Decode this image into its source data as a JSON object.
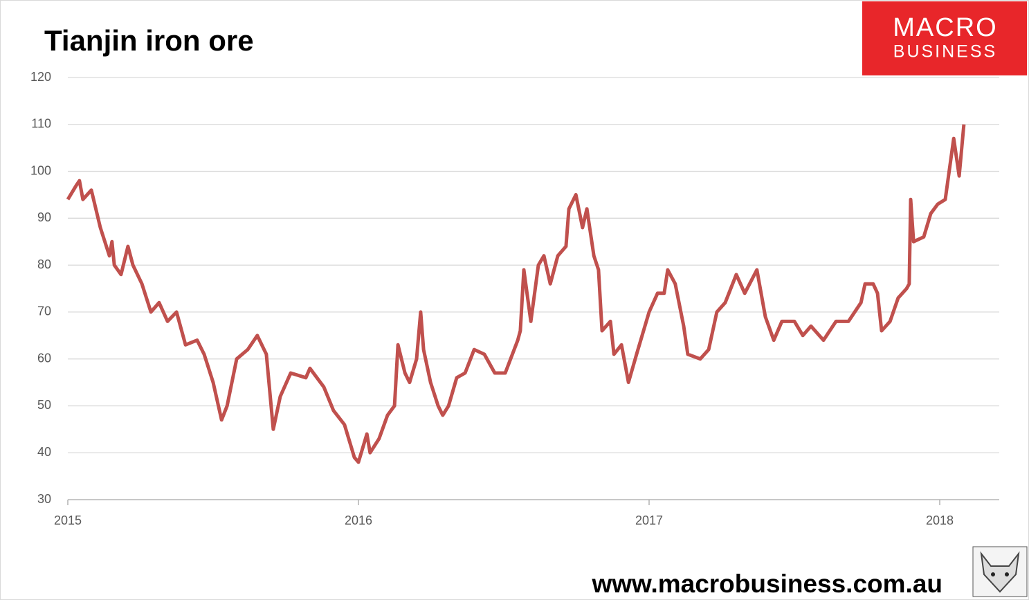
{
  "chart_data": {
    "type": "line",
    "title": "Tianjin iron ore",
    "x": [
      2015.0,
      2015.029,
      2015.04,
      2015.052,
      2015.081,
      2015.112,
      2015.143,
      2015.152,
      2015.16,
      2015.183,
      2015.207,
      2015.224,
      2015.255,
      2015.286,
      2015.314,
      2015.343,
      2015.374,
      2015.405,
      2015.445,
      2015.469,
      2015.5,
      2015.529,
      2015.548,
      2015.581,
      2015.619,
      2015.652,
      2015.683,
      2015.707,
      2015.731,
      2015.767,
      2015.819,
      2015.833,
      2015.881,
      2015.914,
      2015.952,
      2015.986,
      2016.0,
      2016.029,
      2016.04,
      2016.071,
      2016.1,
      2016.124,
      2016.136,
      2016.16,
      2016.176,
      2016.2,
      2016.214,
      2016.224,
      2016.248,
      2016.274,
      2016.29,
      2016.31,
      2016.338,
      2016.367,
      2016.398,
      2016.433,
      2016.469,
      2016.505,
      2016.548,
      2016.557,
      2016.569,
      2016.593,
      2016.619,
      2016.638,
      2016.66,
      2016.686,
      2016.714,
      2016.724,
      2016.748,
      2016.771,
      2016.786,
      2016.81,
      2016.826,
      2016.838,
      2016.867,
      2016.879,
      2016.905,
      2016.929,
      2016.957,
      2017.0,
      2017.029,
      2017.052,
      2017.064,
      2017.09,
      2017.119,
      2017.133,
      2017.176,
      2017.205,
      2017.233,
      2017.262,
      2017.3,
      2017.329,
      2017.371,
      2017.4,
      2017.429,
      2017.457,
      2017.5,
      2017.529,
      2017.557,
      2017.6,
      2017.643,
      2017.686,
      2017.729,
      2017.743,
      2017.771,
      2017.786,
      2017.8,
      2017.829,
      2017.857,
      2017.886,
      2017.895,
      2017.9,
      2017.91,
      2017.945,
      2017.969,
      2017.993,
      2018.019,
      2018.048,
      2018.067,
      2018.083
    ],
    "series": [
      {
        "name": "Tianjin iron ore",
        "color": "#c0504d",
        "values": [
          94,
          97,
          98,
          94,
          96,
          88,
          82,
          85,
          80,
          78,
          84,
          80,
          76,
          70,
          72,
          68,
          70,
          63,
          64,
          61,
          55,
          47,
          50,
          60,
          62,
          65,
          61,
          45,
          52,
          57,
          56,
          58,
          54,
          49,
          46,
          39,
          38,
          44,
          40,
          43,
          48,
          50,
          63,
          57,
          55,
          60,
          70,
          62,
          55,
          50,
          48,
          50,
          56,
          57,
          62,
          61,
          57,
          57,
          64,
          66,
          79,
          68,
          80,
          82,
          76,
          82,
          84,
          92,
          95,
          88,
          92,
          82,
          79,
          66,
          68,
          61,
          63,
          55,
          61,
          70,
          74,
          74,
          79,
          76,
          67,
          61,
          60,
          62,
          70,
          72,
          78,
          74,
          79,
          69,
          64,
          68,
          68,
          65,
          67,
          64,
          68,
          68,
          72,
          76,
          76,
          74,
          66,
          68,
          73,
          75,
          76,
          94,
          85,
          86,
          91,
          93,
          94,
          107,
          99,
          110
        ]
      }
    ],
    "xlim": [
      2015,
      2018.2
    ],
    "xticks": [
      2015,
      2016,
      2017,
      2018
    ],
    "ylim": [
      30,
      120
    ],
    "yticks": [
      30,
      40,
      50,
      60,
      70,
      80,
      90,
      100,
      110,
      120
    ],
    "grid": true
  },
  "logo": {
    "line1": "MACRO",
    "line2": "BUSINESS"
  },
  "website": "www.macrobusiness.com.au"
}
